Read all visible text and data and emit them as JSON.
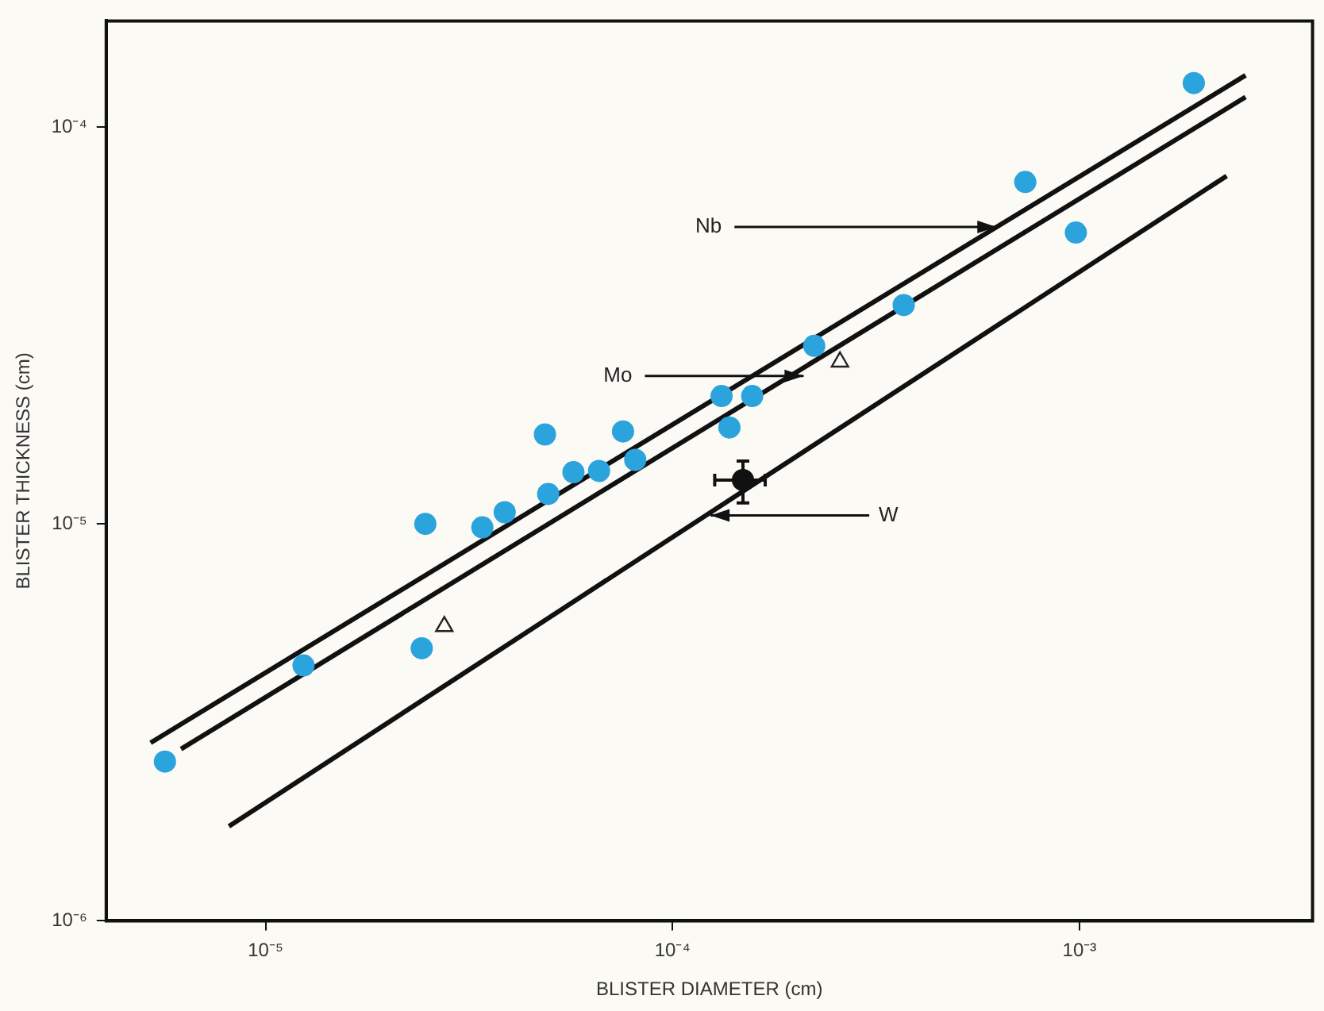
{
  "chart_data": {
    "type": "scatter",
    "xlabel": "BLISTER DIAMETER (cm)",
    "ylabel": "BLISTER THICKNESS (cm)",
    "log": "xy",
    "grid": false,
    "legend": false,
    "xlim": [
      4.06e-06,
      0.00374
    ],
    "ylim": [
      1e-06,
      0.000185
    ],
    "xticks": [
      {
        "value": 1e-05,
        "label": "10⁻⁵"
      },
      {
        "value": 0.0001,
        "label": "10⁻⁴"
      },
      {
        "value": 0.001,
        "label": "10⁻³"
      }
    ],
    "yticks": [
      {
        "value": 1e-06,
        "label": "10⁻⁶"
      },
      {
        "value": 1e-05,
        "label": "10⁻⁵"
      },
      {
        "value": 0.0001,
        "label": "10⁻⁴"
      }
    ],
    "series": [
      {
        "type": "scatter",
        "marker": "circle",
        "color": "#2ba3dc",
        "x": [
          5.66e-06,
          1.24e-05,
          2.47e-05,
          2.42e-05,
          3.41e-05,
          3.87e-05,
          4.86e-05,
          4.95e-05,
          5.71e-05,
          6.6e-05,
          7.56e-05,
          8.1e-05,
          0.000132,
          0.000138,
          0.000157,
          0.000223,
          0.00037,
          0.000736,
          0.00098,
          0.00191
        ],
        "values": [
          2.52e-06,
          4.4e-06,
          1e-05,
          4.86e-06,
          9.8e-06,
          1.07e-05,
          1.68e-05,
          1.19e-05,
          1.35e-05,
          1.36e-05,
          1.71e-05,
          1.45e-05,
          2.1e-05,
          1.75e-05,
          2.1e-05,
          2.81e-05,
          3.56e-05,
          7.27e-05,
          5.42e-05,
          0.000129
        ]
      },
      {
        "type": "scatter",
        "marker": "triangle",
        "color": "#222222",
        "x": [
          2.75e-05,
          0.000258
        ],
        "values": [
          5.52e-06,
          2.56e-05
        ]
      },
      {
        "type": "scatter",
        "marker": "circle",
        "color": "#111111",
        "x": [
          0.000149
        ],
        "values": [
          1.29e-05
        ],
        "errors": [
          [
            1.13e-05,
            1.44e-05
          ]
        ],
        "xerrors": [
          [
            0.000127,
            0.000169
          ]
        ]
      },
      {
        "type": "line",
        "marker": "none",
        "line_style": "solid",
        "color": "#111111",
        "x": [
          5.22e-06,
          0.00256
        ],
        "values": [
          2.81e-06,
          0.000135
        ]
      },
      {
        "type": "line",
        "marker": "none",
        "line_style": "solid",
        "color": "#111111",
        "x": [
          6.2e-06,
          0.00256
        ],
        "values": [
          2.71e-06,
          0.000119
        ]
      },
      {
        "type": "line",
        "marker": "none",
        "line_style": "solid",
        "color": "#111111",
        "x": [
          8.13e-06,
          0.0023
        ],
        "values": [
          1.73e-06,
          7.53e-05
        ]
      }
    ],
    "annotations": [
      {
        "text": "Nb",
        "x": 0.000625,
        "y": 5.6e-05
      },
      {
        "text": "Mo",
        "x": 0.00021,
        "y": 2.36e-05
      },
      {
        "text": "W",
        "x": 0.000124,
        "y": 1.05e-05
      }
    ]
  }
}
